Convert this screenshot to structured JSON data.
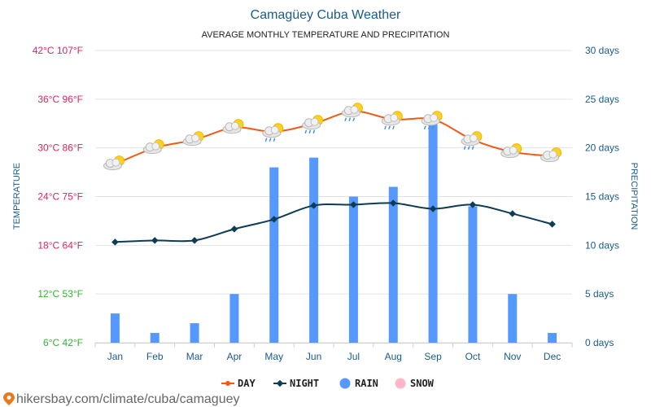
{
  "chart_data": {
    "type": "line+bar",
    "title": "Camagüey Cuba Weather",
    "subtitle": "AVERAGE MONTHLY TEMPERATURE AND PRECIPITATION",
    "categories": [
      "Jan",
      "Feb",
      "Mar",
      "Apr",
      "May",
      "Jun",
      "Jul",
      "Aug",
      "Sep",
      "Oct",
      "Nov",
      "Dec"
    ],
    "left_axis": {
      "label": "TEMPERATURE",
      "unit": "°C",
      "range": [
        6,
        42
      ],
      "ticks": [
        {
          "value": 6,
          "label": "6°C 42°F",
          "color": "#33b333"
        },
        {
          "value": 12,
          "label": "12°C 53°F",
          "color": "#33b333"
        },
        {
          "value": 18,
          "label": "18°C 64°F",
          "color": "#e0245e"
        },
        {
          "value": 24,
          "label": "24°C 75°F",
          "color": "#e0245e"
        },
        {
          "value": 30,
          "label": "30°C 86°F",
          "color": "#e0245e"
        },
        {
          "value": 36,
          "label": "36°C 96°F",
          "color": "#e0245e"
        },
        {
          "value": 42,
          "label": "42°C 107°F",
          "color": "#e0245e"
        }
      ]
    },
    "right_axis": {
      "label": "PRECIPITATION",
      "unit": "days",
      "range": [
        0,
        30
      ],
      "ticks": [
        {
          "value": 0,
          "label": "0 days"
        },
        {
          "value": 5,
          "label": "5 days"
        },
        {
          "value": 10,
          "label": "10 days"
        },
        {
          "value": 15,
          "label": "15 days"
        },
        {
          "value": 20,
          "label": "20 days"
        },
        {
          "value": 25,
          "label": "25 days"
        },
        {
          "value": 30,
          "label": "30 days"
        }
      ]
    },
    "series": [
      {
        "name": "DAY",
        "kind": "line",
        "axis": "left",
        "color": "#f05a14",
        "values": [
          28,
          30,
          31,
          32.5,
          32,
          33,
          34.5,
          33.5,
          33.5,
          31,
          29.5,
          29
        ]
      },
      {
        "name": "NIGHT",
        "kind": "line",
        "axis": "left",
        "color": "#0d3c55",
        "values": [
          18.4,
          18.6,
          18.6,
          20,
          21.2,
          22.9,
          23,
          23.2,
          22.5,
          23,
          21.9,
          20.6
        ]
      },
      {
        "name": "RAIN",
        "kind": "bar",
        "axis": "right",
        "color": "#5599ff",
        "values": [
          3,
          1,
          2,
          5,
          18,
          19,
          15,
          16,
          23,
          14,
          5,
          1
        ]
      },
      {
        "name": "SNOW",
        "kind": "bar",
        "axis": "right",
        "color": "#ffb6c8",
        "values": [
          0,
          0,
          0,
          0,
          0,
          0,
          0,
          0,
          0,
          0,
          0,
          0
        ]
      }
    ],
    "weather_icons": [
      "partly-cloudy-icon",
      "partly-cloudy-icon",
      "partly-cloudy-icon",
      "partly-cloudy-icon",
      "rain-sun-icon",
      "rain-sun-icon",
      "rain-sun-icon",
      "rain-sun-icon",
      "rain-sun-icon",
      "rain-sun-icon",
      "partly-cloudy-icon",
      "partly-cloudy-icon"
    ],
    "legend": {
      "placement": "bottom-center",
      "items": [
        "DAY",
        "NIGHT",
        "RAIN",
        "SNOW"
      ]
    },
    "grid": true
  },
  "source_text": "hikersbay.com/climate/cuba/camaguey"
}
